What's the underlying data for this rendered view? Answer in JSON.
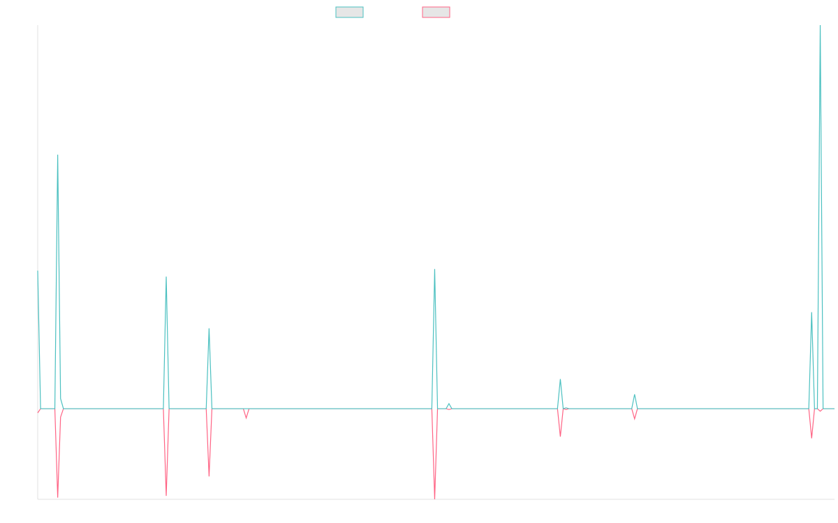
{
  "colors": {
    "series_a": "#4bc0c0",
    "series_b": "#ff6384",
    "legend_fill": "#e6e6e6",
    "axis": "#e0e0e0"
  },
  "chart_data": {
    "type": "line",
    "grid": false,
    "legend_placement": "top-center",
    "x_range": [
      0,
      279
    ],
    "ylim": [
      -1.07,
      4.53
    ],
    "series": [
      {
        "key": "a",
        "values": [
          [
            0,
            1.63
          ],
          [
            1,
            0
          ],
          [
            6,
            0
          ],
          [
            7,
            3.0
          ],
          [
            8,
            0.12
          ],
          [
            9,
            0
          ],
          [
            44,
            0
          ],
          [
            45,
            1.56
          ],
          [
            46,
            0
          ],
          [
            59,
            0
          ],
          [
            60,
            0.95
          ],
          [
            61,
            0
          ],
          [
            138,
            0
          ],
          [
            139,
            1.65
          ],
          [
            140,
            0
          ],
          [
            143,
            0
          ],
          [
            144,
            0.06
          ],
          [
            145,
            0
          ],
          [
            182,
            0
          ],
          [
            183,
            0.35
          ],
          [
            184,
            0
          ],
          [
            185,
            0.01
          ],
          [
            186,
            0
          ],
          [
            208,
            0
          ],
          [
            209,
            0.17
          ],
          [
            210,
            0
          ],
          [
            270,
            0
          ],
          [
            271,
            1.14
          ],
          [
            272,
            0
          ],
          [
            273,
            0
          ],
          [
            274,
            4.53
          ],
          [
            275,
            0
          ],
          [
            279,
            0
          ]
        ]
      },
      {
        "key": "b",
        "values": [
          [
            0,
            -0.05
          ],
          [
            1,
            0
          ],
          [
            6,
            0
          ],
          [
            7,
            -1.05
          ],
          [
            8,
            -0.1
          ],
          [
            9,
            0
          ],
          [
            44,
            0
          ],
          [
            45,
            -1.03
          ],
          [
            46,
            0
          ],
          [
            59,
            0
          ],
          [
            60,
            -0.8
          ],
          [
            61,
            0
          ],
          [
            72,
            0
          ],
          [
            73,
            -0.11
          ],
          [
            74,
            0
          ],
          [
            138,
            0
          ],
          [
            139,
            -1.07
          ],
          [
            140,
            0
          ],
          [
            143,
            0
          ],
          [
            144,
            -0.01
          ],
          [
            145,
            0
          ],
          [
            182,
            0
          ],
          [
            183,
            -0.33
          ],
          [
            184,
            0
          ],
          [
            185,
            -0.01
          ],
          [
            186,
            0
          ],
          [
            208,
            0
          ],
          [
            209,
            -0.12
          ],
          [
            210,
            0
          ],
          [
            270,
            0
          ],
          [
            271,
            -0.35
          ],
          [
            272,
            0
          ],
          [
            273,
            0
          ],
          [
            274,
            -0.03
          ],
          [
            275,
            0
          ],
          [
            279,
            0
          ]
        ]
      }
    ]
  }
}
